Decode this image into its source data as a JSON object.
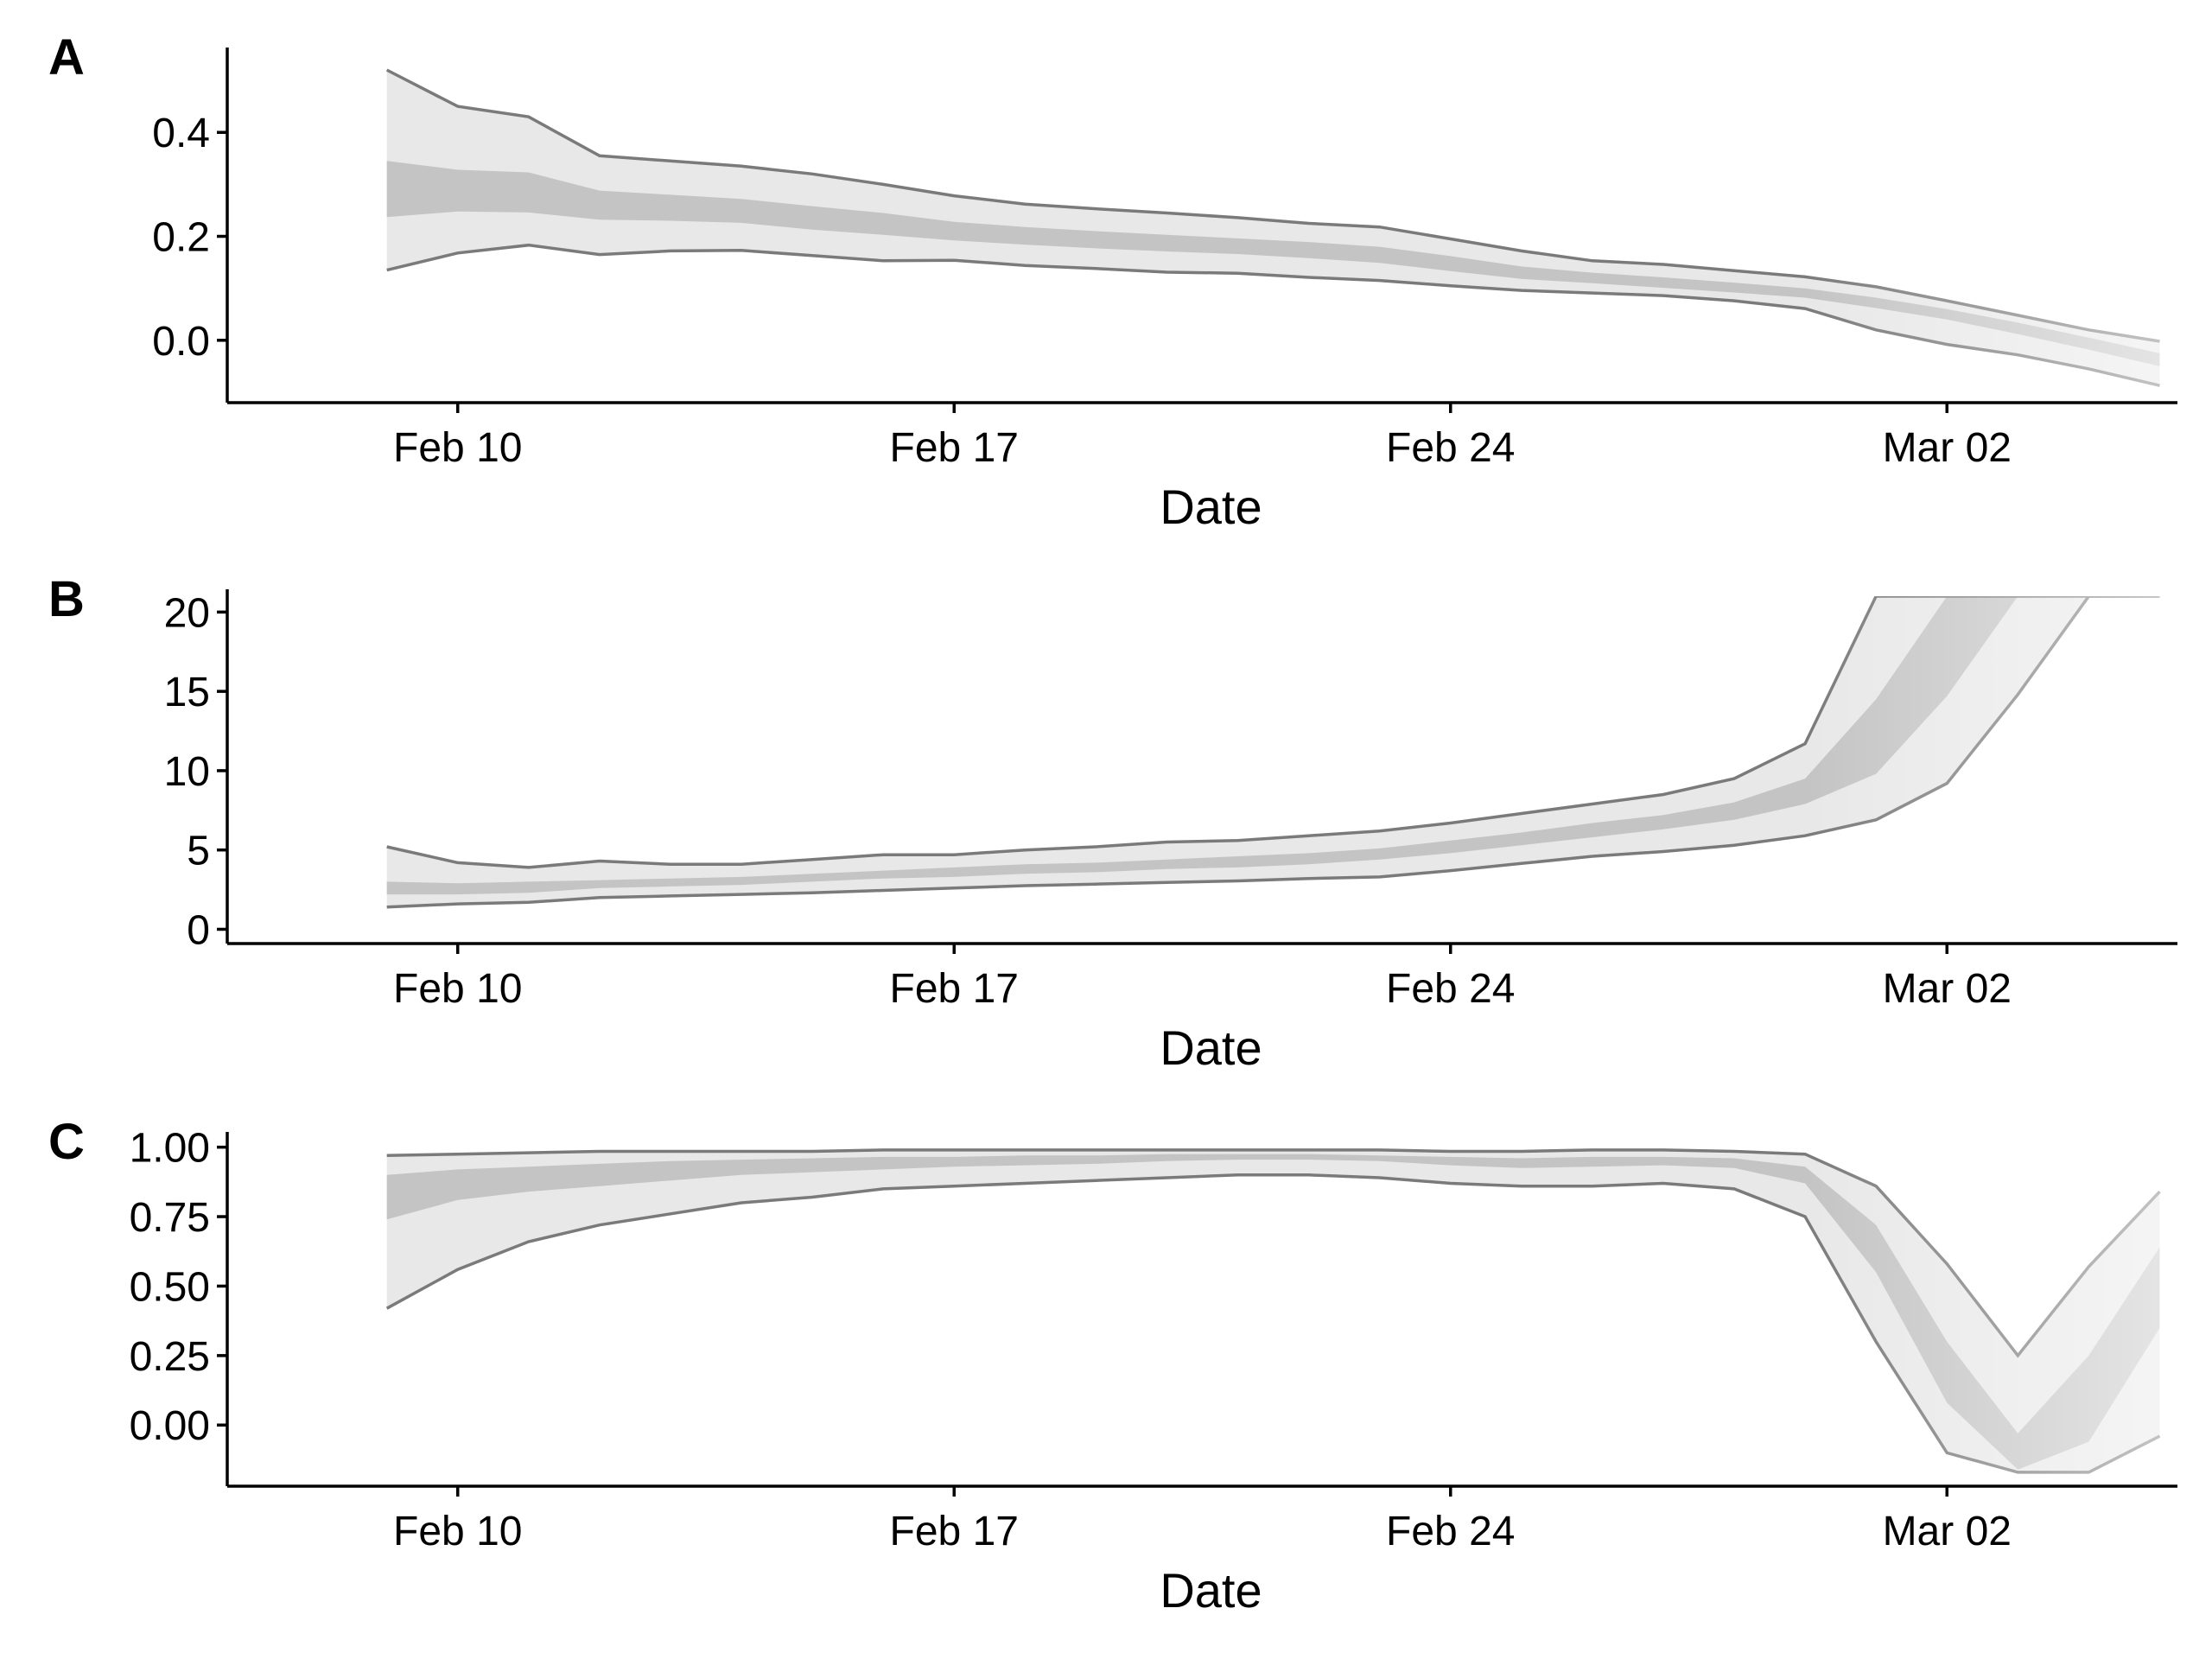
{
  "colors": {
    "outer_band": "#e8e8e8",
    "inner_band": "#c4c4c4",
    "ci_line": "#7a7a7a",
    "axis": "#000000"
  },
  "chart_data": [
    {
      "panel_label": "A",
      "type": "area",
      "xlabel": "Date",
      "ylabel": "",
      "x_ticks": [
        "Feb 10",
        "Feb 17",
        "Feb 24",
        "Mar 02"
      ],
      "x_tick_days": [
        10,
        17,
        24,
        31
      ],
      "xlim": [
        6.75,
        34.25
      ],
      "y_ticks": [
        "0.0",
        "0.2",
        "0.4"
      ],
      "y_tick_values": [
        0.0,
        0.2,
        0.4
      ],
      "ylim": [
        -0.12,
        0.55
      ],
      "ci_band": {
        "x_days": [
          9,
          10,
          11,
          12,
          13,
          14,
          15,
          16,
          17,
          18,
          19,
          20,
          21,
          22,
          23,
          24,
          25,
          26,
          27,
          28,
          29,
          30,
          31,
          32,
          33,
          34
        ],
        "lower95": [
          0.135,
          0.168,
          0.183,
          0.165,
          0.172,
          0.173,
          0.163,
          0.153,
          0.154,
          0.144,
          0.138,
          0.131,
          0.129,
          0.121,
          0.115,
          0.105,
          0.096,
          0.091,
          0.086,
          0.076,
          0.061,
          0.02,
          -0.008,
          -0.028,
          -0.055,
          -0.087
        ],
        "lower50": [
          0.237,
          0.248,
          0.246,
          0.232,
          0.23,
          0.226,
          0.213,
          0.203,
          0.192,
          0.184,
          0.177,
          0.171,
          0.166,
          0.158,
          0.149,
          0.133,
          0.118,
          0.11,
          0.101,
          0.092,
          0.082,
          0.062,
          0.04,
          0.012,
          -0.018,
          -0.05
        ],
        "upper50": [
          0.345,
          0.328,
          0.323,
          0.288,
          0.28,
          0.272,
          0.258,
          0.245,
          0.228,
          0.218,
          0.21,
          0.203,
          0.196,
          0.189,
          0.18,
          0.162,
          0.142,
          0.13,
          0.121,
          0.111,
          0.1,
          0.082,
          0.06,
          0.034,
          0.005,
          -0.025
        ],
        "upper95": [
          0.52,
          0.45,
          0.43,
          0.355,
          0.345,
          0.335,
          0.32,
          0.3,
          0.278,
          0.262,
          0.253,
          0.245,
          0.236,
          0.225,
          0.218,
          0.195,
          0.172,
          0.153,
          0.146,
          0.134,
          0.122,
          0.103,
          0.076,
          0.048,
          0.02,
          -0.002
        ]
      }
    },
    {
      "panel_label": "B",
      "type": "area",
      "xlabel": "Date",
      "ylabel": "",
      "x_ticks": [
        "Feb 10",
        "Feb 17",
        "Feb 24",
        "Mar 02"
      ],
      "x_tick_days": [
        10,
        17,
        24,
        31
      ],
      "xlim": [
        6.75,
        34.25
      ],
      "y_ticks": [
        "0",
        "5",
        "10",
        "15",
        "20"
      ],
      "y_tick_values": [
        0,
        5,
        10,
        15,
        20
      ],
      "ylim": [
        -0.9,
        21
      ],
      "ci_band": {
        "x_days": [
          9,
          10,
          11,
          12,
          13,
          14,
          15,
          16,
          17,
          18,
          19,
          20,
          21,
          22,
          23,
          24,
          25,
          26,
          27,
          28,
          29,
          30,
          31,
          32,
          33,
          34
        ],
        "lower95": [
          1.4,
          1.6,
          1.7,
          2.0,
          2.1,
          2.2,
          2.3,
          2.45,
          2.6,
          2.75,
          2.85,
          2.95,
          3.05,
          3.2,
          3.3,
          3.7,
          4.15,
          4.6,
          4.9,
          5.3,
          5.9,
          6.9,
          9.2,
          14.8,
          21,
          21
        ],
        "lower50": [
          2.2,
          2.2,
          2.3,
          2.6,
          2.7,
          2.8,
          3.0,
          3.2,
          3.3,
          3.5,
          3.6,
          3.8,
          3.9,
          4.1,
          4.4,
          4.8,
          5.3,
          5.8,
          6.3,
          6.9,
          7.9,
          9.8,
          14.7,
          21,
          21,
          21
        ],
        "upper50": [
          3.0,
          2.9,
          3.0,
          3.1,
          3.2,
          3.3,
          3.5,
          3.7,
          3.9,
          4.1,
          4.2,
          4.4,
          4.6,
          4.8,
          5.1,
          5.6,
          6.1,
          6.7,
          7.2,
          8.0,
          9.5,
          14.5,
          21,
          21,
          21,
          21
        ],
        "upper95": [
          5.2,
          4.2,
          3.9,
          4.3,
          4.1,
          4.1,
          4.4,
          4.7,
          4.7,
          5.0,
          5.2,
          5.5,
          5.6,
          5.9,
          6.2,
          6.7,
          7.3,
          7.9,
          8.5,
          9.5,
          11.7,
          21,
          21,
          21,
          21,
          21
        ]
      }
    },
    {
      "panel_label": "C",
      "type": "area",
      "xlabel": "Date",
      "ylabel": "",
      "x_ticks": [
        "Feb 10",
        "Feb 17",
        "Feb 24",
        "Mar 02"
      ],
      "x_tick_days": [
        10,
        17,
        24,
        31
      ],
      "xlim": [
        6.75,
        34.25
      ],
      "y_ticks": [
        "0.00",
        "0.25",
        "0.50",
        "0.75",
        "1.00"
      ],
      "y_tick_values": [
        0,
        0.25,
        0.5,
        0.75,
        1.0
      ],
      "ylim": [
        -0.22,
        1.03
      ],
      "ci_band": {
        "x_days": [
          9,
          10,
          11,
          12,
          13,
          14,
          15,
          16,
          17,
          18,
          19,
          20,
          21,
          22,
          23,
          24,
          25,
          26,
          27,
          28,
          29,
          30,
          31,
          32,
          33,
          34
        ],
        "lower95": [
          0.42,
          0.56,
          0.66,
          0.72,
          0.76,
          0.8,
          0.82,
          0.85,
          0.86,
          0.87,
          0.88,
          0.89,
          0.9,
          0.9,
          0.89,
          0.87,
          0.86,
          0.86,
          0.87,
          0.85,
          0.75,
          0.3,
          -0.1,
          -0.17,
          -0.17,
          -0.04
        ],
        "lower50": [
          0.74,
          0.81,
          0.84,
          0.86,
          0.88,
          0.9,
          0.91,
          0.92,
          0.93,
          0.935,
          0.94,
          0.95,
          0.955,
          0.955,
          0.95,
          0.935,
          0.925,
          0.93,
          0.935,
          0.925,
          0.87,
          0.55,
          0.08,
          -0.16,
          -0.06,
          0.35
        ],
        "upper50": [
          0.9,
          0.92,
          0.93,
          0.94,
          0.95,
          0.955,
          0.96,
          0.965,
          0.965,
          0.97,
          0.97,
          0.975,
          0.975,
          0.975,
          0.97,
          0.965,
          0.96,
          0.965,
          0.965,
          0.96,
          0.93,
          0.72,
          0.3,
          -0.03,
          0.25,
          0.64
        ],
        "upper95": [
          0.97,
          0.975,
          0.98,
          0.985,
          0.985,
          0.985,
          0.985,
          0.99,
          0.99,
          0.99,
          0.99,
          0.99,
          0.99,
          0.99,
          0.99,
          0.985,
          0.985,
          0.99,
          0.99,
          0.985,
          0.975,
          0.86,
          0.58,
          0.25,
          0.57,
          0.84
        ]
      }
    }
  ]
}
